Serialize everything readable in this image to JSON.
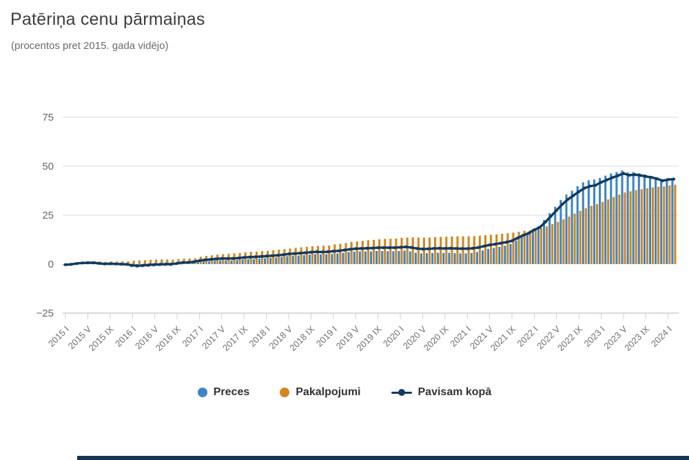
{
  "header": {
    "title": "Patēriņa cenu pārmaiņas",
    "subtitle": "(procentos pret 2015. gada vidējo)"
  },
  "legend": {
    "items": [
      {
        "label": "Preces",
        "color": "#3d85c6",
        "marker": "circle"
      },
      {
        "label": "Pakalpojumi",
        "color": "#d2861f",
        "marker": "circle"
      },
      {
        "label": "Pavisam kopā",
        "color": "#113a60",
        "marker": "line-dot"
      }
    ]
  },
  "chart_data": {
    "type": "bar",
    "title": "Patēriņa cenu pārmaiņas",
    "subtitle": "(procentos pret 2015. gada vidējo)",
    "ylabel": "",
    "xlabel": "",
    "unit": "percent vs 2015 average",
    "ylim": [
      -25,
      75
    ],
    "grid": "horizontal",
    "legend_position": "bottom",
    "n_months": 110,
    "months_per_tick": 4,
    "x_first": "2015 I",
    "x_last": "2024 II",
    "tick_labels": [
      "2015 I",
      "2015 V",
      "2015 IX",
      "2016 I",
      "2016 V",
      "2016 IX",
      "2017 I",
      "2017 V",
      "2017 IX",
      "2018 I",
      "2018 V",
      "2018 IX",
      "2019 I",
      "2019 V",
      "2019 IX",
      "2020 I",
      "2020 V",
      "2020 IX",
      "2021 I",
      "2021 V",
      "2021 IX",
      "2022 I",
      "2022 V",
      "2022 IX",
      "2023 I",
      "2023 V",
      "2023 IX",
      "2024 I"
    ],
    "yticks": [
      {
        "v": 75,
        "label": "75"
      },
      {
        "v": 50,
        "label": "50"
      },
      {
        "v": 25,
        "label": "25"
      },
      {
        "v": 0,
        "label": "0"
      },
      {
        "v": -25,
        "label": "−25"
      }
    ],
    "series": [
      {
        "name": "Preces",
        "type": "column",
        "color": "#3d85c6",
        "values": [
          -0.6,
          -0.4,
          0.0,
          0.3,
          0.4,
          0.4,
          0.0,
          -0.3,
          -0.2,
          -0.3,
          -0.5,
          -0.7,
          -1.5,
          -1.8,
          -1.6,
          -1.4,
          -1.2,
          -1.0,
          -0.9,
          -0.9,
          -0.4,
          0.0,
          0.2,
          0.5,
          1.0,
          1.4,
          1.5,
          1.9,
          2.0,
          2.0,
          1.9,
          2.1,
          2.4,
          2.5,
          2.6,
          2.8,
          3.0,
          3.2,
          3.4,
          3.7,
          4.1,
          4.3,
          4.4,
          4.6,
          4.9,
          5.1,
          5.0,
          5.1,
          5.2,
          5.4,
          5.8,
          6.2,
          6.4,
          6.5,
          6.5,
          6.5,
          6.7,
          6.7,
          6.6,
          6.6,
          6.7,
          6.9,
          6.5,
          5.8,
          5.5,
          5.6,
          5.7,
          5.8,
          5.7,
          5.8,
          5.6,
          5.5,
          5.5,
          5.7,
          6.2,
          7.0,
          7.8,
          8.3,
          8.8,
          9.4,
          10.3,
          12.0,
          13.8,
          15.5,
          17.8,
          19.3,
          22.5,
          26.0,
          29.3,
          32.8,
          35.5,
          37.5,
          39.8,
          41.8,
          42.8,
          43.2,
          44.0,
          45.2,
          46.3,
          47.0,
          47.8,
          46.8,
          47.0,
          46.4,
          45.8,
          45.0,
          44.2,
          43.4,
          43.4,
          43.6
        ]
      },
      {
        "name": "Pakalpojumi",
        "type": "column",
        "color": "#d2861f",
        "values": [
          0.4,
          0.6,
          0.9,
          1.2,
          1.4,
          1.5,
          1.3,
          1.2,
          1.4,
          1.3,
          1.4,
          1.4,
          1.8,
          1.9,
          2.0,
          2.2,
          2.3,
          2.4,
          2.4,
          2.3,
          2.6,
          2.8,
          2.9,
          3.0,
          3.8,
          4.2,
          4.5,
          4.9,
          5.1,
          5.3,
          5.5,
          5.7,
          6.1,
          6.3,
          6.4,
          6.6,
          6.8,
          7.1,
          7.4,
          7.7,
          8.0,
          8.3,
          8.6,
          8.8,
          9.1,
          9.3,
          9.4,
          9.5,
          10.1,
          10.4,
          10.8,
          11.3,
          11.6,
          11.9,
          12.2,
          12.4,
          12.7,
          12.9,
          13.0,
          13.1,
          13.4,
          13.6,
          13.7,
          13.6,
          13.5,
          13.6,
          13.8,
          13.9,
          14.0,
          14.1,
          14.2,
          14.2,
          14.2,
          14.3,
          14.5,
          14.8,
          15.0,
          15.2,
          15.5,
          15.8,
          16.1,
          16.5,
          17.0,
          17.3,
          17.8,
          18.4,
          19.3,
          20.4,
          21.6,
          22.9,
          24.3,
          25.8,
          27.2,
          28.5,
          29.8,
          30.7,
          31.8,
          33.0,
          34.3,
          35.5,
          36.6,
          37.2,
          37.8,
          38.3,
          38.8,
          39.2,
          39.5,
          39.7,
          40.2,
          40.6
        ]
      },
      {
        "name": "Pavisam kopā",
        "type": "line",
        "color": "#113a60",
        "values": [
          -0.3,
          -0.1,
          0.3,
          0.6,
          0.7,
          0.7,
          0.4,
          0.1,
          0.2,
          0.1,
          0.0,
          -0.1,
          -0.6,
          -0.8,
          -0.6,
          -0.4,
          -0.2,
          -0.1,
          0.0,
          0.0,
          0.4,
          0.8,
          0.9,
          1.2,
          1.8,
          2.2,
          2.4,
          2.7,
          2.9,
          2.9,
          2.9,
          3.1,
          3.4,
          3.6,
          3.7,
          3.9,
          4.1,
          4.3,
          4.5,
          4.8,
          5.2,
          5.4,
          5.6,
          5.8,
          6.1,
          6.3,
          6.2,
          6.3,
          6.6,
          6.8,
          7.2,
          7.6,
          7.9,
          8.0,
          8.1,
          8.2,
          8.4,
          8.4,
          8.4,
          8.4,
          8.6,
          8.8,
          8.5,
          8.0,
          7.7,
          7.8,
          8.0,
          8.1,
          8.0,
          8.1,
          8.0,
          7.9,
          7.9,
          8.1,
          8.5,
          9.2,
          9.8,
          10.2,
          10.7,
          11.2,
          11.9,
          13.3,
          14.7,
          15.8,
          17.5,
          18.8,
          21.5,
          24.5,
          27.5,
          30.5,
          33.0,
          35.0,
          37.0,
          38.8,
          39.8,
          40.3,
          41.8,
          43.0,
          44.2,
          45.2,
          46.3,
          45.4,
          45.7,
          45.3,
          44.8,
          44.3,
          43.6,
          42.6,
          43.2,
          43.4
        ]
      }
    ],
    "style": {
      "gridline_color": "#d8d8d8",
      "axis_color": "#c3d0da",
      "ylabel_color": "#666666",
      "xlabel_color": "#6e6e6e"
    }
  }
}
